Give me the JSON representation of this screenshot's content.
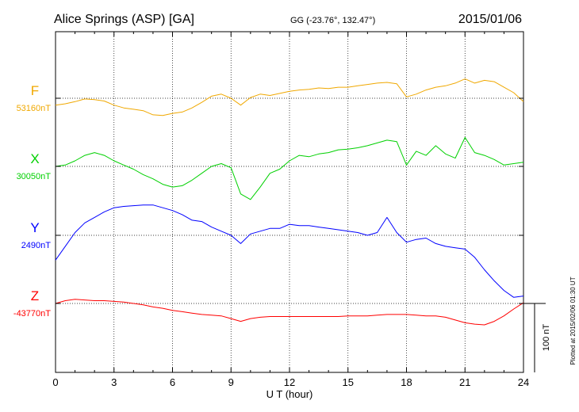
{
  "header": {
    "station": "Alice Springs (ASP)  [GA]",
    "coords": "GG (-23.76°, 132.47°)",
    "date": "2015/01/06"
  },
  "footer": {
    "plotted": "Plotted at 2015/02/06 01:30 UT"
  },
  "colors": {
    "F": "#f0a800",
    "X": "#00d000",
    "Y": "#0000ff",
    "Z": "#ff0000"
  },
  "chart_data": {
    "type": "line",
    "xlabel": "U T (hour)",
    "ylabel": "",
    "xlim": [
      0,
      24
    ],
    "x_ticks": [
      "0",
      "3",
      "6",
      "9",
      "12",
      "15",
      "18",
      "21",
      "24"
    ],
    "grid": true,
    "scale_bar": {
      "label": "100 nT",
      "value_nT": 100
    },
    "series": [
      {
        "name": "F",
        "baseline_label": "53160nT",
        "baseline": 53160,
        "x": [
          0,
          0.5,
          1,
          1.5,
          2,
          2.5,
          3,
          3.5,
          4,
          4.5,
          5,
          5.5,
          6,
          6.5,
          7,
          7.5,
          8,
          8.5,
          9,
          9.5,
          10,
          10.5,
          11,
          11.5,
          12,
          12.5,
          13,
          13.5,
          14,
          14.5,
          15,
          15.5,
          16,
          16.5,
          17,
          17.5,
          18,
          18.5,
          19,
          19.5,
          20,
          20.5,
          21,
          21.5,
          22,
          22.5,
          23,
          23.5,
          24
        ],
        "y": [
          53150,
          53152,
          53155,
          53159,
          53158,
          53156,
          53150,
          53146,
          53144,
          53142,
          53136,
          53135,
          53138,
          53140,
          53146,
          53154,
          53163,
          53166,
          53160,
          53150,
          53161,
          53166,
          53164,
          53167,
          53170,
          53172,
          53173,
          53175,
          53174,
          53176,
          53176,
          53178,
          53180,
          53182,
          53183,
          53181,
          53162,
          53166,
          53172,
          53176,
          53178,
          53182,
          53188,
          53182,
          53186,
          53184,
          53176,
          53168,
          53155
        ]
      },
      {
        "name": "X",
        "baseline_label": "30050nT",
        "baseline": 30050,
        "x": [
          0,
          0.5,
          1,
          1.5,
          2,
          2.5,
          3,
          3.5,
          4,
          4.5,
          5,
          5.5,
          6,
          6.5,
          7,
          7.5,
          8,
          8.5,
          9,
          9.5,
          10,
          10.5,
          11,
          11.5,
          12,
          12.5,
          13,
          13.5,
          14,
          14.5,
          15,
          15.5,
          16,
          16.5,
          17,
          17.5,
          18,
          18.5,
          19,
          19.5,
          20,
          20.5,
          21,
          21.5,
          22,
          22.5,
          23,
          23.5,
          24
        ],
        "y": [
          30050,
          30052,
          30058,
          30066,
          30070,
          30066,
          30058,
          30052,
          30046,
          30038,
          30032,
          30024,
          30020,
          30022,
          30030,
          30040,
          30050,
          30054,
          30048,
          30010,
          30002,
          30020,
          30040,
          30046,
          30058,
          30066,
          30064,
          30068,
          30070,
          30074,
          30075,
          30077,
          30080,
          30084,
          30088,
          30086,
          30052,
          30072,
          30066,
          30080,
          30068,
          30062,
          30092,
          30070,
          30066,
          30060,
          30052,
          30054,
          30056
        ]
      },
      {
        "name": "Y",
        "baseline_label": "2490nT",
        "baseline": 2490,
        "x": [
          0,
          0.5,
          1,
          1.5,
          2,
          2.5,
          3,
          3.5,
          4,
          4.5,
          5,
          5.5,
          6,
          6.5,
          7,
          7.5,
          8,
          8.5,
          9,
          9.5,
          10,
          10.5,
          11,
          11.5,
          12,
          12.5,
          13,
          13.5,
          14,
          14.5,
          15,
          15.5,
          16,
          16.5,
          17,
          17.5,
          18,
          18.5,
          19,
          19.5,
          20,
          20.5,
          21,
          21.5,
          22,
          22.5,
          23,
          23.5,
          24
        ],
        "y": [
          2454,
          2474,
          2494,
          2508,
          2516,
          2524,
          2530,
          2532,
          2533,
          2534,
          2534,
          2530,
          2526,
          2520,
          2512,
          2510,
          2502,
          2496,
          2490,
          2478,
          2492,
          2496,
          2500,
          2500,
          2506,
          2504,
          2504,
          2502,
          2500,
          2498,
          2496,
          2494,
          2490,
          2494,
          2516,
          2494,
          2480,
          2484,
          2486,
          2478,
          2474,
          2472,
          2470,
          2458,
          2440,
          2424,
          2410,
          2400,
          2402
        ]
      },
      {
        "name": "Z",
        "baseline_label": "-43770nT",
        "baseline": -43770,
        "x": [
          0,
          0.5,
          1,
          1.5,
          2,
          2.5,
          3,
          3.5,
          4,
          4.5,
          5,
          5.5,
          6,
          6.5,
          7,
          7.5,
          8,
          8.5,
          9,
          9.5,
          10,
          10.5,
          11,
          11.5,
          12,
          12.5,
          13,
          13.5,
          14,
          14.5,
          15,
          15.5,
          16,
          16.5,
          17,
          17.5,
          18,
          18.5,
          19,
          19.5,
          20,
          20.5,
          21,
          21.5,
          22,
          22.5,
          23,
          23.5,
          24
        ],
        "y": [
          -43770,
          -43766,
          -43764,
          -43765,
          -43766,
          -43766,
          -43767,
          -43768,
          -43770,
          -43772,
          -43775,
          -43777,
          -43780,
          -43782,
          -43784,
          -43786,
          -43787,
          -43788,
          -43792,
          -43796,
          -43792,
          -43790,
          -43789,
          -43789,
          -43789,
          -43789,
          -43789,
          -43789,
          -43789,
          -43789,
          -43788,
          -43788,
          -43788,
          -43787,
          -43786,
          -43786,
          -43786,
          -43787,
          -43788,
          -43788,
          -43790,
          -43794,
          -43798,
          -43800,
          -43801,
          -43796,
          -43788,
          -43778,
          -43769
        ]
      }
    ]
  }
}
